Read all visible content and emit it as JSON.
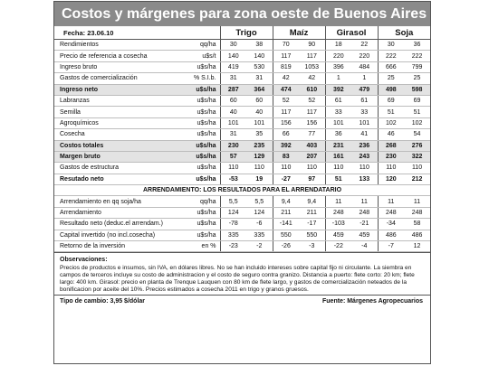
{
  "title": "Costos y márgenes para zona oeste de Buenos Aires",
  "date_label": "Fecha: 23.06.10",
  "crops": [
    "Trigo",
    "Maíz",
    "Girasol",
    "Soja"
  ],
  "rows": [
    {
      "label": "Rendimientos",
      "unit": "qq/ha",
      "v": [
        "30",
        "38",
        "70",
        "90",
        "18",
        "22",
        "30",
        "36"
      ],
      "style": ""
    },
    {
      "label": "Precio de referencia a cosecha",
      "unit": "u$s/t",
      "v": [
        "140",
        "140",
        "117",
        "117",
        "220",
        "220",
        "222",
        "222"
      ],
      "style": ""
    },
    {
      "label": "Ingreso bruto",
      "unit": "u$s/ha",
      "v": [
        "419",
        "530",
        "819",
        "1053",
        "396",
        "484",
        "666",
        "799"
      ],
      "style": ""
    },
    {
      "label": "Gastos de comercialización",
      "unit": "% S.I.b.",
      "v": [
        "31",
        "31",
        "42",
        "42",
        "1",
        "1",
        "25",
        "25"
      ],
      "style": ""
    },
    {
      "label": "Ingreso neto",
      "unit": "u$s/ha",
      "v": [
        "287",
        "364",
        "474",
        "610",
        "392",
        "479",
        "498",
        "598"
      ],
      "style": "shade"
    },
    {
      "label": "Labranzas",
      "unit": "u$s/ha",
      "v": [
        "60",
        "60",
        "52",
        "52",
        "61",
        "61",
        "69",
        "69"
      ],
      "style": ""
    },
    {
      "label": "Semilla",
      "unit": "u$s/ha",
      "v": [
        "40",
        "40",
        "117",
        "117",
        "33",
        "33",
        "51",
        "51"
      ],
      "style": ""
    },
    {
      "label": "Agroquímicos",
      "unit": "u$s/ha",
      "v": [
        "101",
        "101",
        "156",
        "156",
        "101",
        "101",
        "102",
        "102"
      ],
      "style": ""
    },
    {
      "label": "Cosecha",
      "unit": "u$s/ha",
      "v": [
        "31",
        "35",
        "66",
        "77",
        "36",
        "41",
        "46",
        "54"
      ],
      "style": ""
    },
    {
      "label": "Costos totales",
      "unit": "u$s/ha",
      "v": [
        "230",
        "235",
        "392",
        "403",
        "231",
        "236",
        "268",
        "276"
      ],
      "style": "shade"
    },
    {
      "label": "Margen bruto",
      "unit": "u$s/ha",
      "v": [
        "57",
        "129",
        "83",
        "207",
        "161",
        "243",
        "230",
        "322"
      ],
      "style": "shade"
    },
    {
      "label": "Gastos de estructura",
      "unit": "u$s/ha",
      "v": [
        "110",
        "110",
        "110",
        "110",
        "110",
        "110",
        "110",
        "110"
      ],
      "style": ""
    },
    {
      "label": "Resutado neto",
      "unit": "u$s/ha",
      "v": [
        "-53",
        "19",
        "-27",
        "97",
        "51",
        "133",
        "120",
        "212"
      ],
      "style": "bold"
    }
  ],
  "section2_title": "ARRENDAMIENTO: LOS RESULTADOS PARA EL ARRENDATARIO",
  "rows2": [
    {
      "label": "Arrendamiento en qq soja/ha",
      "unit": "qq/ha",
      "v": [
        "5,5",
        "5,5",
        "9,4",
        "9,4",
        "11",
        "11",
        "11",
        "11"
      ],
      "style": ""
    },
    {
      "label": "Arrendamiento",
      "unit": "u$s/ha",
      "v": [
        "124",
        "124",
        "211",
        "211",
        "248",
        "248",
        "248",
        "248"
      ],
      "style": ""
    },
    {
      "label": "Resultado neto (deduc.el arrendam.)",
      "unit": "u$s/ha",
      "v": [
        "-78",
        "-6",
        "-141",
        "-17",
        "-103",
        "-21",
        "-34",
        "58"
      ],
      "style": ""
    },
    {
      "label": "Capital invertido (no incl.cosecha)",
      "unit": "u$s/ha",
      "v": [
        "335",
        "335",
        "550",
        "550",
        "459",
        "459",
        "486",
        "486"
      ],
      "style": ""
    },
    {
      "label": "Retorno de la inversión",
      "unit": "en %",
      "v": [
        "-23",
        "-2",
        "-26",
        "-3",
        "-22",
        "-4",
        "-7",
        "12"
      ],
      "style": ""
    }
  ],
  "observations_title": "Observaciones:",
  "observations_text": "Precios de productos e insumos, sin IVA, en dólares libres. No se han incluido intereses sobre capital fijo ni circulante. La siembra en campos de terceros incluye su costo de administracion y el costo de seguro contra granizo. Distancia a puerto: flete corto: 20 km; flete largo: 400 km. Girasol: precio en planta de Trenque Lauquen con 80 km de flete largo, y gastos  de comercialización neteados de la bonificacion por aceite del 10%. Precios estimados a cosecha 2011 en trigo y granos gruesos.",
  "exchange_rate": "Tipo de cambio: 3,95  $/dólar",
  "source": "Fuente: Márgenes Agropecuarios"
}
